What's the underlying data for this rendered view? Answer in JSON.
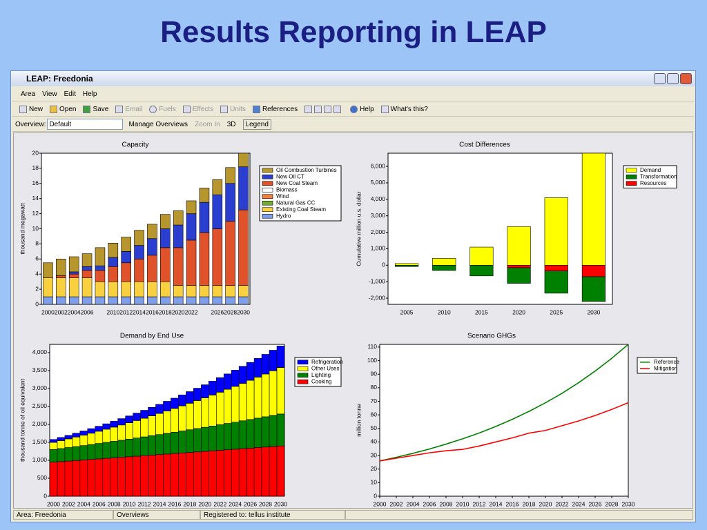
{
  "slide_title": "Results Reporting in LEAP",
  "window_title": "LEAP: Freedonia",
  "menu": [
    "Area",
    "View",
    "Edit",
    "Help"
  ],
  "toolbar": [
    "New",
    "Open",
    "Save",
    "Email",
    "Fuels",
    "Effects",
    "Units",
    "References",
    "Help",
    "What's this?"
  ],
  "overview_bar": {
    "label": "Overview:",
    "selected": "Default",
    "buttons": [
      "Manage Overviews",
      "Zoom In",
      "3D",
      "Legend"
    ]
  },
  "status_bar": [
    "Area: Freedonia",
    "Overviews",
    "Registered to: tellus institute"
  ],
  "chart_data": [
    {
      "type": "bar",
      "stacked": true,
      "title": "Capacity",
      "y_label": "thousand  megawatt",
      "categories": [
        "2000",
        "2002",
        "2004",
        "2006",
        null,
        "2010",
        "2012",
        "2014",
        "2016",
        "2018",
        "2020",
        "2022",
        null,
        "2026",
        "2028",
        "2030"
      ],
      "series": [
        {
          "name": "Oil Combustion Turbines",
          "color": "#b8962e",
          "values": [
            2.0,
            2.2,
            2.0,
            1.7,
            2.4,
            1.9,
            1.9,
            2.0,
            1.9,
            1.9,
            1.9,
            1.7,
            1.9,
            2.0,
            2.1,
            1.8
          ]
        },
        {
          "name": "New Oil CT",
          "color": "#2a3fd0",
          "values": [
            0,
            0,
            0.3,
            0.5,
            0.6,
            1.2,
            1.5,
            1.8,
            2.2,
            2.5,
            3,
            3.5,
            4,
            4.5,
            5,
            5.7
          ]
        },
        {
          "name": "New Coal Steam",
          "color": "#e0522a",
          "values": [
            0,
            0.3,
            0.5,
            1,
            1.5,
            2,
            2.5,
            3,
            3.5,
            4.5,
            5,
            6,
            7,
            7.5,
            8.5,
            10
          ]
        },
        {
          "name": "Biomass",
          "color": "#ffffff",
          "values": [
            0,
            0,
            0,
            0,
            0,
            0,
            0,
            0,
            0,
            0,
            0,
            0,
            0,
            0,
            0,
            0
          ]
        },
        {
          "name": "Wind",
          "color": "#f08040",
          "values": [
            0,
            0,
            0,
            0,
            0,
            0,
            0,
            0,
            0,
            0,
            0,
            0,
            0,
            0,
            0,
            0
          ]
        },
        {
          "name": "Natural Gas CC",
          "color": "#70b030",
          "values": [
            0,
            0,
            0,
            0,
            0,
            0,
            0,
            0,
            0,
            0,
            0,
            0,
            0,
            0,
            0,
            0
          ]
        },
        {
          "name": "Existing Coal Steam",
          "color": "#f8d040",
          "values": [
            2.5,
            2.5,
            2.5,
            2.5,
            2,
            2,
            2,
            2,
            2,
            2,
            1.5,
            1.5,
            1.5,
            1.5,
            1.5,
            1.5
          ]
        },
        {
          "name": "Hydro",
          "color": "#7f9fe8",
          "values": [
            1,
            1,
            1,
            1,
            1,
            1,
            1,
            1,
            1,
            1,
            1,
            1,
            1,
            1,
            1,
            1
          ]
        }
      ],
      "ylim": [
        0,
        20
      ],
      "yticks": [
        0,
        2,
        4,
        6,
        8,
        10,
        12,
        14,
        16,
        18,
        20
      ]
    },
    {
      "type": "bar",
      "stacked": true,
      "title": "Cost Differences",
      "y_label": "Cumulative million  u.s. dollar",
      "categories": [
        "2005",
        "2010",
        "2015",
        "2020",
        "2025",
        "2030"
      ],
      "series": [
        {
          "name": "Demand",
          "color": "#ffff00",
          "values": [
            100,
            420,
            1100,
            2350,
            4100,
            6800
          ]
        },
        {
          "name": "Transformation",
          "color": "#008000",
          "values": [
            -80,
            -320,
            -650,
            -950,
            -1350,
            -1500
          ]
        },
        {
          "name": "Resources",
          "color": "#ff0000",
          "values": [
            0,
            0,
            0,
            -150,
            -350,
            -700
          ]
        }
      ],
      "ylim": [
        -2375,
        6800
      ],
      "yticks": [
        {
          "value": -2000,
          "label": "-2,000"
        },
        {
          "value": -1000,
          "label": "-1,000"
        },
        0,
        {
          "value": 1000,
          "label": "1,000"
        },
        {
          "value": 2000,
          "label": "2,000"
        },
        {
          "value": 3000,
          "label": "3,000"
        },
        {
          "value": 4000,
          "label": "4,000"
        },
        {
          "value": 5000,
          "label": "5,000"
        },
        {
          "value": 6000,
          "label": "6,000"
        }
      ]
    },
    {
      "type": "bar",
      "stacked": true,
      "title": "Demand by End Use",
      "y_label": "thousand  tonne of oil equivalent",
      "categories": [
        "2000",
        null,
        "2002",
        null,
        "2004",
        null,
        "2006",
        null,
        "2008",
        null,
        "2010",
        null,
        "2012",
        null,
        "2014",
        null,
        "2016",
        null,
        "2018",
        null,
        "2020",
        null,
        "2022",
        null,
        "2024",
        null,
        "2026",
        null,
        "2028",
        null,
        "2030"
      ],
      "series": [
        {
          "name": "Refrigeration",
          "color": "#0000ff",
          "values": [
            80,
            88,
            97,
            107,
            117,
            128,
            139,
            151,
            164,
            177,
            191,
            206,
            221,
            236,
            253,
            270,
            287,
            306,
            324,
            344,
            364,
            385,
            406,
            428,
            451,
            474,
            498,
            522,
            547,
            573,
            599
          ]
        },
        {
          "name": "Other Uses",
          "color": "#ffff00",
          "values": [
            200,
            221,
            242,
            265,
            289,
            314,
            340,
            367,
            395,
            425,
            455,
            487,
            519,
            553,
            588,
            624,
            661,
            699,
            738,
            779,
            820,
            863,
            906,
            951,
            997,
            1044,
            1092,
            1141,
            1191,
            1243,
            1295
          ]
        },
        {
          "name": "Lighting",
          "color": "#008000",
          "values": [
            350,
            362,
            375,
            388,
            401,
            415,
            429,
            444,
            459,
            474,
            490,
            506,
            523,
            540,
            557,
            575,
            593,
            612,
            631,
            650,
            670,
            690,
            711,
            732,
            753,
            775,
            797,
            820,
            843,
            866,
            890
          ]
        },
        {
          "name": "Cooking",
          "color": "#ff0000",
          "values": [
            950,
            965,
            980,
            995,
            1010,
            1025,
            1040,
            1055,
            1070,
            1085,
            1100,
            1115,
            1130,
            1145,
            1160,
            1175,
            1190,
            1205,
            1220,
            1235,
            1250,
            1265,
            1280,
            1295,
            1310,
            1325,
            1340,
            1355,
            1370,
            1385,
            1400
          ]
        }
      ],
      "ylim": [
        0,
        4230
      ],
      "yticks": [
        0,
        500,
        {
          "value": 1000,
          "label": "1,000"
        },
        {
          "value": 1500,
          "label": "1,500"
        },
        {
          "value": 2000,
          "label": "2,000"
        },
        {
          "value": 2500,
          "label": "2,500"
        },
        {
          "value": 3000,
          "label": "3,000"
        },
        {
          "value": 3500,
          "label": "3,500"
        },
        {
          "value": 4000,
          "label": "4,000"
        }
      ]
    },
    {
      "type": "line",
      "title": "Scenario GHGs",
      "y_label": "million  tonne",
      "x": [
        2000,
        2002,
        2004,
        2006,
        2008,
        2010,
        2012,
        2014,
        2016,
        2018,
        2020,
        2022,
        2024,
        2026,
        2028,
        2030
      ],
      "series": [
        {
          "name": "Reference",
          "color": "#008000",
          "values": [
            26,
            28.7,
            31.6,
            34.8,
            38.4,
            42.3,
            46.6,
            51.4,
            56.7,
            62.5,
            68.9,
            75.9,
            83.7,
            92.3,
            101.7,
            112
          ]
        },
        {
          "name": "Mitigation",
          "color": "#ff0000",
          "values": [
            26,
            28,
            30,
            32,
            33.5,
            34.5,
            37,
            40,
            43,
            46.5,
            48.5,
            52,
            55.5,
            59.5,
            64,
            69
          ]
        }
      ],
      "xlim": [
        2000,
        2030
      ],
      "xticks": [
        2000,
        2002,
        2004,
        2006,
        2008,
        2010,
        2012,
        2014,
        2016,
        2018,
        2020,
        2022,
        2024,
        2026,
        2028,
        2030
      ],
      "ylim": [
        0,
        112
      ],
      "yticks": [
        0,
        10,
        20,
        30,
        40,
        50,
        60,
        70,
        80,
        90,
        100,
        110
      ]
    }
  ]
}
